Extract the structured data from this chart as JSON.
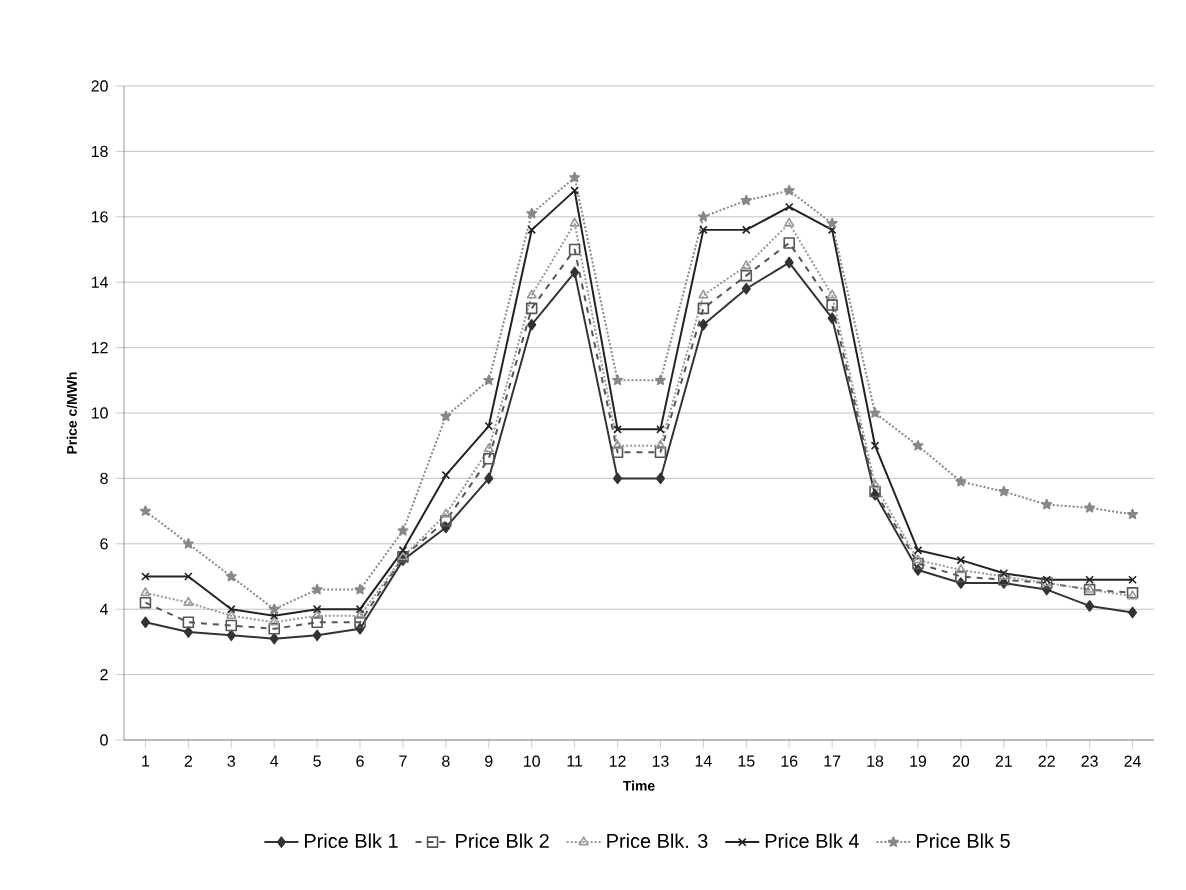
{
  "chart_data": {
    "type": "line",
    "xlabel": "Time",
    "ylabel": "Price c/MWh",
    "categories": [
      "1",
      "2",
      "3",
      "4",
      "5",
      "6",
      "7",
      "8",
      "9",
      "10",
      "11",
      "12",
      "13",
      "14",
      "15",
      "16",
      "17",
      "18",
      "19",
      "20",
      "21",
      "22",
      "23",
      "24"
    ],
    "ylim": [
      0,
      20
    ],
    "yticks": [
      0,
      2,
      4,
      6,
      8,
      10,
      12,
      14,
      16,
      18,
      20
    ],
    "grid": "y",
    "legend": "bottom",
    "series": [
      {
        "name": "Price Blk 1",
        "color": "#333333",
        "marker": "diamond",
        "line_style": "solid",
        "values": [
          3.6,
          3.3,
          3.2,
          3.1,
          3.2,
          3.4,
          5.5,
          6.5,
          8.0,
          12.7,
          14.3,
          8.0,
          8.0,
          12.7,
          13.8,
          14.6,
          12.9,
          7.5,
          5.2,
          4.8,
          4.8,
          4.6,
          4.1,
          3.9
        ]
      },
      {
        "name": "Price Blk 2",
        "color": "#555555",
        "marker": "square",
        "line_style": "dashed",
        "values": [
          4.2,
          3.6,
          3.5,
          3.4,
          3.6,
          3.6,
          5.6,
          6.7,
          8.6,
          13.2,
          15.0,
          8.8,
          8.8,
          13.2,
          14.2,
          15.2,
          13.3,
          7.6,
          5.4,
          5.0,
          4.9,
          4.8,
          4.6,
          4.5
        ]
      },
      {
        "name": "Price Blk. 3",
        "color": "#999999",
        "marker": "triangle",
        "line_style": "dotted",
        "values": [
          4.5,
          4.2,
          3.8,
          3.6,
          3.8,
          3.8,
          5.6,
          6.9,
          8.9,
          13.6,
          15.8,
          9.0,
          9.0,
          13.6,
          14.5,
          15.8,
          13.6,
          7.8,
          5.5,
          5.2,
          5.0,
          4.8,
          4.6,
          4.4
        ]
      },
      {
        "name": "Price Blk 4",
        "color": "#222222",
        "marker": "cross",
        "line_style": "solid",
        "values": [
          5.0,
          5.0,
          4.0,
          3.8,
          4.0,
          4.0,
          5.8,
          8.1,
          9.6,
          15.6,
          16.8,
          9.5,
          9.5,
          15.6,
          15.6,
          16.3,
          15.6,
          9.0,
          5.8,
          5.5,
          5.1,
          4.9,
          4.9,
          4.9
        ]
      },
      {
        "name": "Price Blk 5",
        "color": "#888888",
        "marker": "star",
        "line_style": "dotted",
        "values": [
          7.0,
          6.0,
          5.0,
          4.0,
          4.6,
          4.6,
          6.4,
          9.9,
          11.0,
          16.1,
          17.2,
          11.0,
          11.0,
          16.0,
          16.5,
          16.8,
          15.8,
          10.0,
          9.0,
          7.9,
          7.6,
          7.2,
          7.1,
          6.9
        ]
      }
    ]
  }
}
